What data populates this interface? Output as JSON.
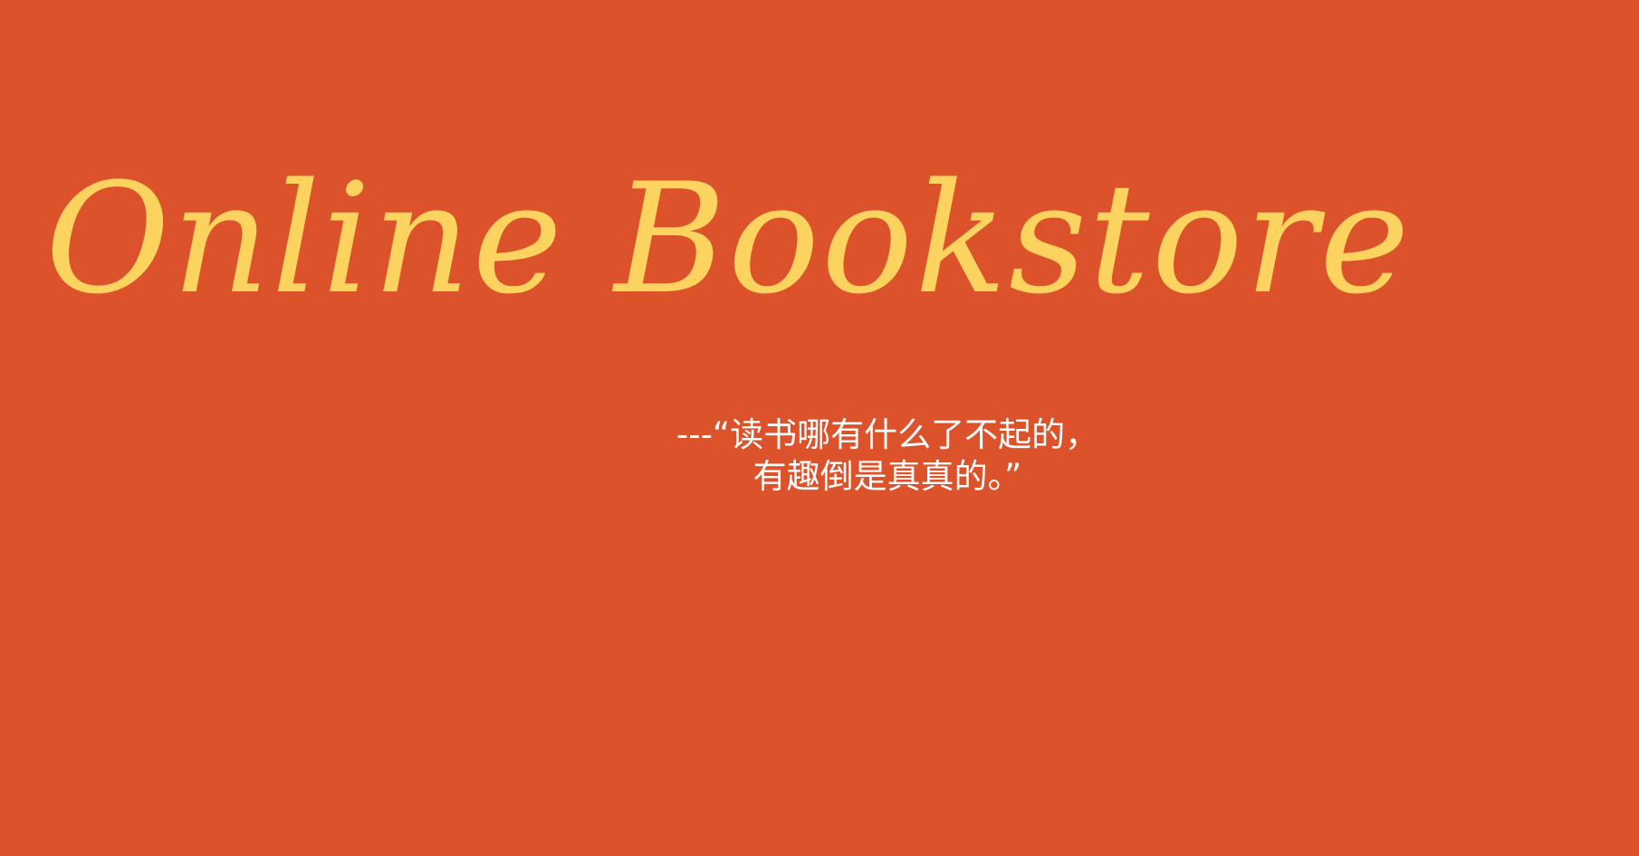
{
  "site": {
    "title": "Online Bookstore"
  },
  "quote": {
    "line1": "---“读书哪有什么了不起的，",
    "line2": "有趣倒是真真的。”"
  },
  "colors": {
    "background": "#DC522B",
    "title": "#FCD35E",
    "quote": "#FFFFFF"
  }
}
